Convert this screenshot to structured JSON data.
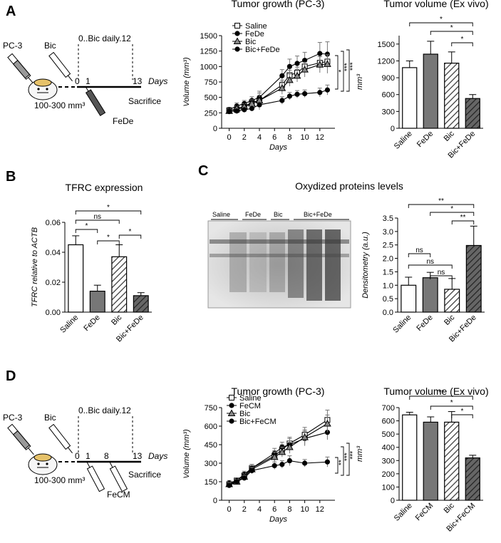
{
  "panels": {
    "A": "A",
    "B": "B",
    "C": "C",
    "D": "D"
  },
  "schemeA": {
    "pc3": "PC-3",
    "bic": "Bic",
    "daily": "0..Bic daily.12",
    "day0": "0",
    "day1": "1",
    "day13": "13",
    "days": "Days",
    "volume": "100-300 mm³",
    "sacrifice": "Sacrifice",
    "drug": "FeDe"
  },
  "schemeD": {
    "pc3": "PC-3",
    "bic": "Bic",
    "daily": "0..Bic daily.12",
    "day0": "0",
    "day1": "1",
    "day8": "8",
    "day13": "13",
    "days": "Days",
    "volume": "100-300 mm³",
    "sacrifice": "Sacrifice",
    "drug": "FeCM"
  },
  "blot": {
    "lanes": [
      "Saline",
      "FeDe",
      "Bic",
      "Bic+FeDe"
    ]
  },
  "colors": {
    "saline": "#ffffff",
    "fede": "#777777",
    "hatch": "#333333",
    "combo": "#666666"
  },
  "chart_data": [
    {
      "id": "A_growth",
      "type": "line",
      "title": "Tumor growth (PC-3)",
      "xlabel": "Days",
      "ylabel": "Volume (mm³)",
      "xlim": [
        -1,
        14
      ],
      "ylim": [
        0,
        1500
      ],
      "xticks": [
        0,
        2,
        4,
        6,
        8,
        10,
        12
      ],
      "yticks": [
        0,
        250,
        500,
        750,
        1000,
        1250,
        1500
      ],
      "x": [
        0,
        1,
        2,
        3,
        4,
        7,
        8,
        9,
        10,
        12,
        13
      ],
      "series": [
        {
          "name": "Saline",
          "marker": "square-open",
          "values": [
            290,
            300,
            350,
            420,
            450,
            700,
            860,
            900,
            1000,
            1060,
            1080
          ],
          "err": [
            40,
            40,
            50,
            50,
            60,
            80,
            80,
            90,
            90,
            100,
            100
          ]
        },
        {
          "name": "FeDe",
          "marker": "circle-filled",
          "values": [
            300,
            360,
            400,
            450,
            500,
            850,
            1000,
            1050,
            1100,
            1210,
            1200
          ],
          "err": [
            40,
            50,
            50,
            60,
            70,
            100,
            120,
            120,
            130,
            180,
            200
          ]
        },
        {
          "name": "Bic",
          "marker": "triangle-filled",
          "values": [
            280,
            320,
            350,
            400,
            450,
            650,
            780,
            850,
            950,
            1030,
            1040
          ],
          "err": [
            40,
            40,
            50,
            60,
            150,
            100,
            100,
            100,
            120,
            130,
            150
          ]
        },
        {
          "name": "Bic+FeDe",
          "marker": "circle-filled",
          "values": [
            270,
            280,
            300,
            320,
            380,
            450,
            520,
            550,
            560,
            580,
            620
          ],
          "err": [
            30,
            30,
            40,
            40,
            50,
            60,
            60,
            60,
            60,
            70,
            80
          ]
        }
      ],
      "significance": [
        "*",
        "***",
        "***"
      ]
    },
    {
      "id": "A_volume",
      "type": "bar",
      "title": "Tumor volume (Ex vivo)",
      "ylabel": "mm³",
      "ylim": [
        0,
        1650
      ],
      "yticks": [
        0,
        300,
        600,
        900,
        1200,
        1500
      ],
      "categories": [
        "Saline",
        "FeDe",
        "Bic",
        "Bic+FeDe"
      ],
      "values": [
        1080,
        1320,
        1160,
        530
      ],
      "err": [
        120,
        230,
        200,
        70
      ],
      "significance": [
        "*",
        "*",
        "*"
      ]
    },
    {
      "id": "B_tfrc",
      "type": "bar",
      "title": "TFRC expression",
      "ylabel": "TFRC relative to ACTB",
      "ylim": [
        0,
        0.06
      ],
      "yticks": [
        "0.00",
        "0.02",
        "0.04",
        "0.06"
      ],
      "categories": [
        "Saline",
        "FeDe",
        "Bic",
        "Bic+FeDe"
      ],
      "values": [
        0.045,
        0.014,
        0.037,
        0.011
      ],
      "err": [
        0.006,
        0.004,
        0.008,
        0.002
      ],
      "significance": [
        "*",
        "ns",
        "*",
        "*",
        "*"
      ]
    },
    {
      "id": "C_oxid",
      "type": "bar",
      "title": "Oxydized proteins levels",
      "ylabel": "Densitometry (a.u.)",
      "ylim": [
        0,
        3.5
      ],
      "yticks": [
        "0.0",
        "0.5",
        "1.0",
        "1.5",
        "2.0",
        "2.5",
        "3.0",
        "3.5"
      ],
      "categories": [
        "Saline",
        "FeDe",
        "Bic",
        "Bic+FeDe"
      ],
      "values": [
        1.0,
        1.28,
        0.85,
        2.48
      ],
      "err": [
        0.3,
        0.2,
        0.4,
        0.72
      ],
      "significance": [
        "**",
        "*",
        "**",
        "ns",
        "ns",
        "ns"
      ]
    },
    {
      "id": "D_growth",
      "type": "line",
      "title": "Tumor growth (PC-3)",
      "xlabel": "Days",
      "ylabel": "Volume (mm³)",
      "xlim": [
        -1,
        14
      ],
      "ylim": [
        0,
        750
      ],
      "xticks": [
        0,
        2,
        4,
        6,
        8,
        10,
        12
      ],
      "yticks": [
        0,
        150,
        300,
        450,
        600,
        750
      ],
      "x": [
        0,
        1,
        2,
        3,
        6,
        7,
        8,
        10,
        13
      ],
      "series": [
        {
          "name": "Saline",
          "marker": "square-open",
          "values": [
            130,
            160,
            200,
            260,
            360,
            410,
            460,
            530,
            650
          ],
          "err": [
            20,
            20,
            25,
            30,
            40,
            40,
            50,
            60,
            80
          ]
        },
        {
          "name": "FeCM",
          "marker": "circle-filled",
          "values": [
            140,
            160,
            210,
            260,
            380,
            430,
            450,
            500,
            550
          ],
          "err": [
            20,
            20,
            25,
            30,
            40,
            40,
            50,
            60,
            60
          ]
        },
        {
          "name": "Bic",
          "marker": "triangle-filled",
          "values": [
            130,
            150,
            190,
            250,
            350,
            390,
            430,
            510,
            620
          ],
          "err": [
            20,
            20,
            25,
            30,
            40,
            40,
            50,
            60,
            70
          ]
        },
        {
          "name": "Bic+FeCM",
          "marker": "circle-filled",
          "values": [
            120,
            150,
            180,
            240,
            280,
            290,
            320,
            300,
            310
          ],
          "err": [
            20,
            20,
            20,
            25,
            30,
            30,
            40,
            30,
            40
          ]
        }
      ],
      "significance": [
        "**",
        "***",
        "***"
      ]
    },
    {
      "id": "D_volume",
      "type": "bar",
      "title": "Tumor volume (Ex vivo)",
      "ylabel": "mm³",
      "ylim": [
        0,
        700
      ],
      "yticks": [
        0,
        100,
        200,
        300,
        400,
        500,
        600,
        700
      ],
      "categories": [
        "Saline",
        "FeCM",
        "Bic",
        "Bic+FeCM"
      ],
      "values": [
        645,
        590,
        590,
        320
      ],
      "err": [
        20,
        40,
        80,
        20
      ],
      "significance": [
        "**",
        "*",
        "*"
      ]
    }
  ]
}
